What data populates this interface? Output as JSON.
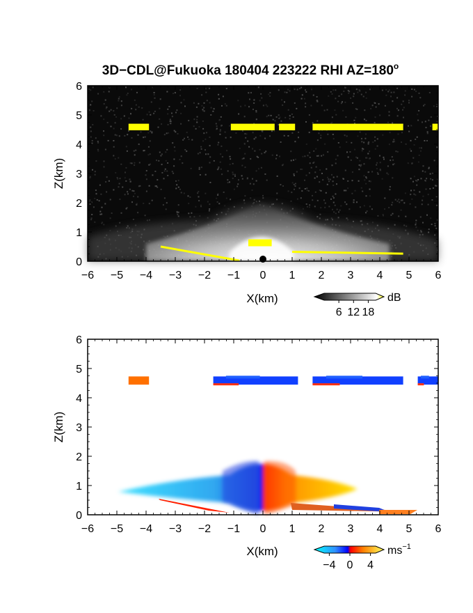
{
  "figure": {
    "title": "3D−CDL@Fukuoka 180404 223222 RHI AZ=180",
    "title_superscript": "o"
  },
  "chart_data": [
    {
      "type": "heatmap",
      "panel": "top",
      "xlabel": "X(km)",
      "ylabel": "Z(km)",
      "xlim": [
        -6,
        6
      ],
      "ylim": [
        0,
        6
      ],
      "xticks": [
        "−6",
        "−5",
        "−4",
        "−3",
        "−2",
        "−1",
        "0",
        "1",
        "2",
        "3",
        "4",
        "5",
        "6"
      ],
      "yticks": [
        "0",
        "1",
        "2",
        "3",
        "4",
        "5",
        "6"
      ],
      "colorbar": {
        "unit": "dB",
        "ticks": [
          "6",
          "12",
          "18"
        ],
        "tick_values": [
          6,
          12,
          18
        ],
        "range": [
          0,
          21
        ],
        "colormap": "grayscale with yellow top"
      },
      "background_color": "#0a0a0a",
      "features": [
        {
          "name": "near-ground echo fan",
          "x_range": [
            -6,
            6
          ],
          "z_range": [
            0,
            1.3
          ],
          "center_x": 0,
          "intensity": "high near origin"
        },
        {
          "name": "cloud layer",
          "segments": [
            [
              -4.6,
              -3.9
            ],
            [
              -1.1,
              0.4
            ],
            [
              0.55,
              1.1
            ],
            [
              1.7,
              4.8
            ],
            [
              5.8,
              6.0
            ]
          ],
          "z": [
            4.4,
            4.7
          ],
          "color": "#ffff00"
        },
        {
          "name": "ground clutter line",
          "segments": [
            [
              -3.5,
              -0.8
            ],
            [
              1.0,
              4.8
            ]
          ],
          "z": [
            0.0,
            0.5
          ],
          "color": "#ffff00"
        }
      ]
    },
    {
      "type": "heatmap",
      "panel": "bottom",
      "xlabel": "X(km)",
      "ylabel": "Z(km)",
      "xlim": [
        -6,
        6
      ],
      "ylim": [
        0,
        6
      ],
      "xticks": [
        "−6",
        "−5",
        "−4",
        "−3",
        "−2",
        "−1",
        "0",
        "1",
        "2",
        "3",
        "4",
        "5",
        "6"
      ],
      "yticks": [
        "0",
        "1",
        "2",
        "3",
        "4",
        "5",
        "6"
      ],
      "colorbar": {
        "unit": "ms",
        "unit_exponent": "−1",
        "ticks": [
          "−4",
          "0",
          "4"
        ],
        "tick_values": [
          -4,
          0,
          4
        ],
        "range": [
          -5,
          5
        ],
        "colormap": "cyan-blue-red-yellow diverging"
      },
      "background_color": "#ffffff",
      "features": [
        {
          "name": "low-level velocity field",
          "x_range": [
            -4.9,
            3.2
          ],
          "z_range": [
            0.1,
            1.8
          ],
          "negative_side": "cyan",
          "positive_side": "orange-yellow"
        },
        {
          "name": "cloud layer",
          "segments": [
            [
              -4.6,
              -3.9
            ],
            [
              -1.7,
              1.2
            ],
            [
              1.7,
              4.8
            ],
            [
              5.3,
              6.0
            ]
          ],
          "z": [
            4.4,
            4.8
          ],
          "dominant_color": "blue"
        },
        {
          "name": "near-ground streak",
          "x_range": [
            1.0,
            5.3
          ],
          "z": [
            0.05,
            0.4
          ],
          "dominant_color": "orange"
        }
      ]
    }
  ]
}
